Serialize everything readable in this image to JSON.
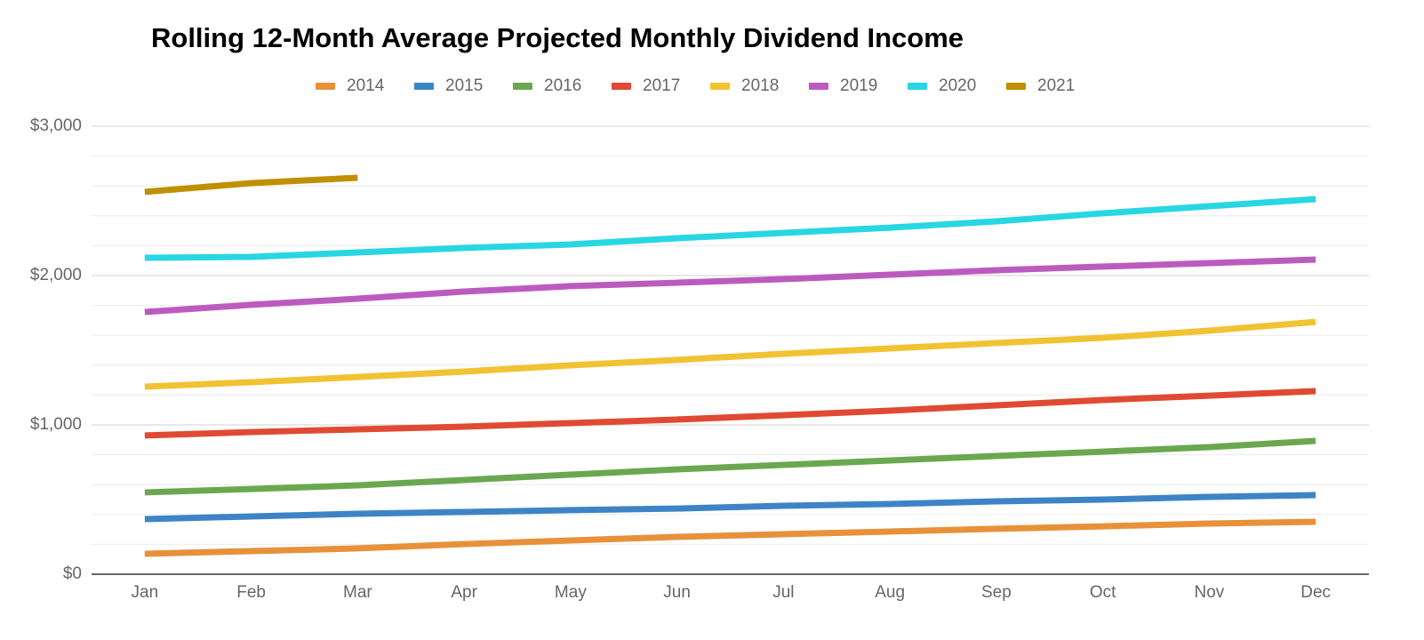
{
  "chart_data": {
    "type": "line",
    "title": "Rolling 12-Month Average Projected Monthly Dividend Income",
    "categories": [
      "Jan",
      "Feb",
      "Mar",
      "Apr",
      "May",
      "Jun",
      "Jul",
      "Aug",
      "Sep",
      "Oct",
      "Nov",
      "Dec"
    ],
    "series": [
      {
        "name": "2014",
        "color": "#e8913a",
        "values": [
          137,
          155,
          173,
          202,
          226,
          250,
          268,
          286,
          304,
          321,
          339,
          351
        ]
      },
      {
        "name": "2015",
        "color": "#3d84c6",
        "values": [
          369,
          387,
          405,
          417,
          429,
          440,
          458,
          470,
          488,
          500,
          518,
          530
        ]
      },
      {
        "name": "2016",
        "color": "#6aa84f",
        "values": [
          548,
          571,
          595,
          631,
          667,
          702,
          732,
          762,
          792,
          821,
          851,
          893
        ]
      },
      {
        "name": "2017",
        "color": "#e04a33",
        "values": [
          929,
          952,
          970,
          988,
          1012,
          1036,
          1065,
          1095,
          1131,
          1167,
          1196,
          1226
        ]
      },
      {
        "name": "2018",
        "color": "#f1c232",
        "values": [
          1256,
          1286,
          1321,
          1357,
          1399,
          1435,
          1476,
          1512,
          1548,
          1583,
          1631,
          1690
        ]
      },
      {
        "name": "2019",
        "color": "#bc5bbf",
        "values": [
          1756,
          1804,
          1845,
          1893,
          1929,
          1952,
          1976,
          2006,
          2036,
          2060,
          2083,
          2107
        ]
      },
      {
        "name": "2020",
        "color": "#29d6e3",
        "values": [
          2119,
          2125,
          2155,
          2185,
          2208,
          2250,
          2286,
          2321,
          2363,
          2417,
          2464,
          2512
        ]
      },
      {
        "name": "2021",
        "color": "#bf9000",
        "values": [
          2560,
          2619,
          2655,
          null,
          null,
          null,
          null,
          null,
          null,
          null,
          null,
          null
        ]
      }
    ],
    "ylim": [
      0,
      3000
    ],
    "yticks": [
      {
        "value": 0,
        "label": "$0"
      },
      {
        "value": 1000,
        "label": "$1,000"
      },
      {
        "value": 2000,
        "label": "$2,000"
      },
      {
        "value": 3000,
        "label": "$3,000"
      }
    ],
    "minor_gridlines": [
      200,
      400,
      600,
      800,
      1200,
      1400,
      1600,
      1800,
      2200,
      2400,
      2600,
      2800
    ],
    "grid": true,
    "legend": "top"
  }
}
